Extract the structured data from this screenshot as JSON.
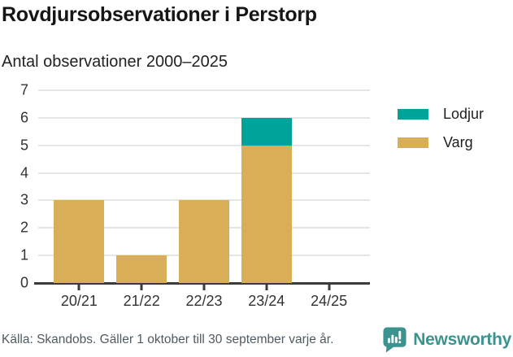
{
  "header": {
    "title": "Rovdjursobservationer i Perstorp",
    "subtitle": "Antal observationer 2000–2025"
  },
  "chart_data": {
    "type": "bar",
    "stacked": true,
    "title": "Rovdjursobservationer i Perstorp",
    "subtitle": "Antal observationer 2000–2025",
    "categories": [
      "20/21",
      "21/22",
      "22/23",
      "23/24",
      "24/25"
    ],
    "series": [
      {
        "name": "Lodjur",
        "color": "#00a399",
        "values": [
          0,
          0,
          0,
          1,
          0
        ]
      },
      {
        "name": "Varg",
        "color": "#d9ae57",
        "values": [
          3,
          1,
          3,
          5,
          0
        ]
      }
    ],
    "stack_bottom_to_top": [
      "Varg",
      "Lodjur"
    ],
    "totals": [
      3,
      1,
      3,
      6,
      0
    ],
    "xlabel": "",
    "ylabel": "",
    "ylim": [
      0,
      7
    ],
    "yticks": [
      0,
      1,
      2,
      3,
      4,
      5,
      6,
      7
    ],
    "grid": true,
    "legend_position": "right"
  },
  "footer": {
    "source": "Källa: Skandobs. Gäller 1 oktober till 30 september varje år.",
    "brand": "Newsworthy"
  },
  "colors": {
    "lodjur": "#00a399",
    "varg": "#d9ae57",
    "brand_teal": "#3a938f",
    "gridline": "#e5e5e5",
    "axis": "#3b3b3b"
  }
}
